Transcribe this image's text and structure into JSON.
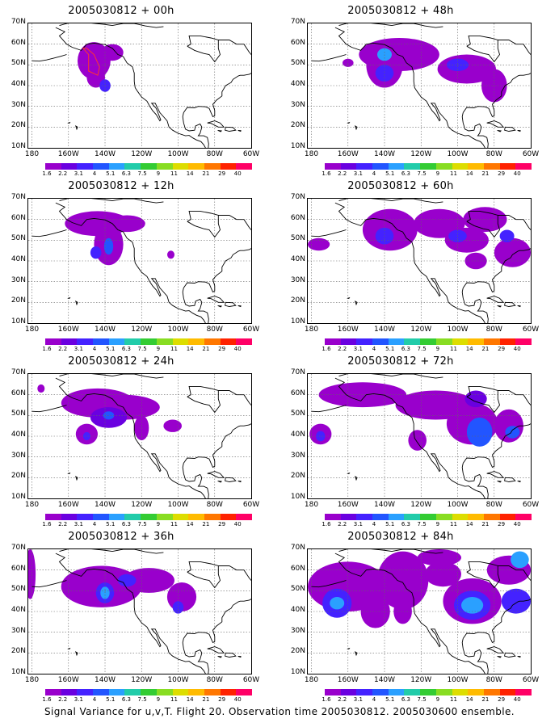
{
  "caption": "Signal Variance for u,v,T. Flight 20. Observation time 2005030812. 2005030600 ensemble.",
  "chart_data": {
    "type": "heatmap",
    "panels": [
      {
        "title": "2005030812 + 00h"
      },
      {
        "title": "2005030812 + 48h"
      },
      {
        "title": "2005030812 + 12h"
      },
      {
        "title": "2005030812 + 60h"
      },
      {
        "title": "2005030812 + 24h"
      },
      {
        "title": "2005030812 + 72h"
      },
      {
        "title": "2005030812 + 36h"
      },
      {
        "title": "2005030812 + 84h"
      }
    ],
    "y_tick_labels": [
      "70N",
      "60N",
      "50N",
      "40N",
      "30N",
      "20N",
      "10N"
    ],
    "x_tick_labels": [
      "180",
      "160W",
      "140W",
      "120W",
      "100W",
      "80W",
      "60W"
    ],
    "colorbar_labels": [
      "1.6",
      "2.2",
      "3.1",
      "4",
      "5.1",
      "6.3",
      "7.5",
      "9",
      "11",
      "14",
      "21",
      "29",
      "40"
    ],
    "colorbar_colors": [
      "#9900cc",
      "#6a00e0",
      "#4422ff",
      "#2255ff",
      "#2aa0ff",
      "#22ccaa",
      "#33cc33",
      "#88dd22",
      "#dddd00",
      "#ffbb00",
      "#ff7700",
      "#ff2200",
      "#ff0066"
    ],
    "lon_range": [
      -182,
      -60
    ],
    "lat_range": [
      10,
      70
    ],
    "grid": true
  }
}
